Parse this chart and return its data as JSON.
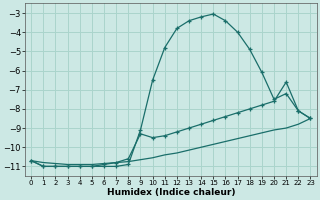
{
  "xlabel": "Humidex (Indice chaleur)",
  "ylabel": "",
  "bg_color": "#cce8e4",
  "line_color": "#1a6e6a",
  "grid_color": "#aad4cc",
  "ylim": [
    -11.5,
    -2.5
  ],
  "xlim": [
    -0.5,
    23.5
  ],
  "yticks": [
    -11,
    -10,
    -9,
    -8,
    -7,
    -6,
    -5,
    -4,
    -3
  ],
  "xticks": [
    0,
    1,
    2,
    3,
    4,
    5,
    6,
    7,
    8,
    9,
    10,
    11,
    12,
    13,
    14,
    15,
    16,
    17,
    18,
    19,
    20,
    21,
    22,
    23
  ],
  "curve1_x": [
    0,
    1,
    2,
    3,
    4,
    5,
    6,
    7,
    8,
    9,
    10,
    11,
    12,
    13,
    14,
    15,
    16,
    17,
    18,
    19,
    20,
    21,
    22,
    23
  ],
  "curve1_y": [
    -10.7,
    -11.0,
    -11.0,
    -11.0,
    -11.0,
    -11.0,
    -11.0,
    -11.0,
    -10.9,
    -9.1,
    -6.5,
    -4.8,
    -3.8,
    -3.4,
    -3.2,
    -3.05,
    -3.4,
    -4.0,
    -4.9,
    -6.1,
    -7.5,
    -7.2,
    -8.1,
    -8.5
  ],
  "curve2_x": [
    0,
    1,
    2,
    3,
    4,
    5,
    6,
    7,
    8,
    9,
    10,
    11,
    12,
    13,
    14,
    15,
    16,
    17,
    18,
    19,
    20,
    21,
    22,
    23
  ],
  "curve2_y": [
    -10.7,
    -11.0,
    -11.0,
    -11.0,
    -11.0,
    -11.0,
    -10.9,
    -10.8,
    -10.6,
    -9.3,
    -9.5,
    -9.4,
    -9.2,
    -9.0,
    -8.8,
    -8.6,
    -8.4,
    -8.2,
    -8.0,
    -7.8,
    -7.6,
    -6.6,
    -8.1,
    -8.5
  ],
  "curve3_x": [
    0,
    1,
    2,
    3,
    4,
    5,
    6,
    7,
    8,
    9,
    10,
    11,
    12,
    13,
    14,
    15,
    16,
    17,
    18,
    19,
    20,
    21,
    22,
    23
  ],
  "curve3_y": [
    -10.7,
    -10.8,
    -10.85,
    -10.9,
    -10.9,
    -10.9,
    -10.85,
    -10.8,
    -10.75,
    -10.65,
    -10.55,
    -10.4,
    -10.3,
    -10.15,
    -10.0,
    -9.85,
    -9.7,
    -9.55,
    -9.4,
    -9.25,
    -9.1,
    -9.0,
    -8.8,
    -8.5
  ]
}
